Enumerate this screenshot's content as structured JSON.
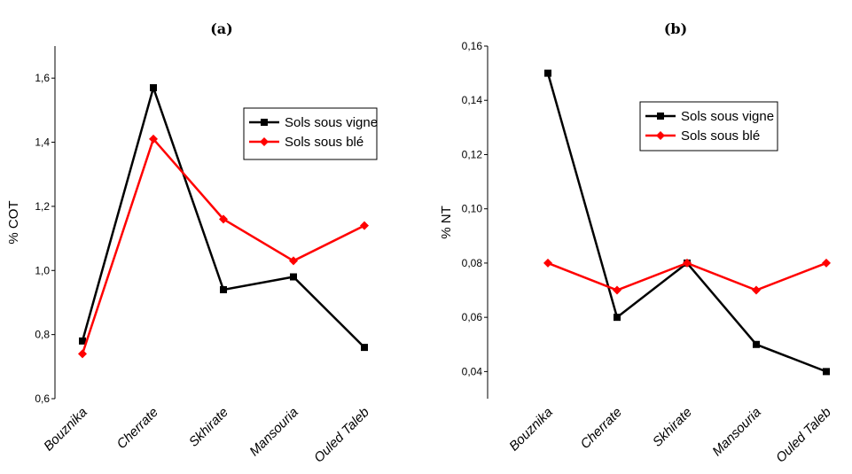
{
  "chart_data": [
    {
      "type": "line",
      "title": "(a)",
      "xlabel": "",
      "ylabel": "% COT",
      "categories": [
        "Bouznika",
        "Cherrate",
        "Skhirate",
        "Mansouria",
        "Ouled Taleb"
      ],
      "ylim": [
        0.6,
        1.7
      ],
      "yticks": [
        "0,6",
        "0,8",
        "1,0",
        "1,2",
        "1,4",
        "1,6"
      ],
      "ytick_values": [
        0.6,
        0.8,
        1.0,
        1.2,
        1.4,
        1.6
      ],
      "legend_position": "top-right",
      "series": [
        {
          "name": "Sols sous vigne",
          "color": "#000000",
          "marker": "square",
          "values": [
            0.78,
            1.57,
            0.94,
            0.98,
            0.76
          ]
        },
        {
          "name": "Sols sous blé",
          "color": "#ff0000",
          "marker": "diamond",
          "values": [
            0.74,
            1.41,
            1.16,
            1.03,
            1.14
          ]
        }
      ]
    },
    {
      "type": "line",
      "title": "(b)",
      "xlabel": "",
      "ylabel": "% NT",
      "categories": [
        "Bouznika",
        "Cherrate",
        "Skhirate",
        "Mansouria",
        "Ouled Taleb"
      ],
      "ylim": [
        0.03,
        0.16
      ],
      "yticks": [
        "0,04",
        "0,06",
        "0,08",
        "0,10",
        "0,12",
        "0,14",
        "0,16"
      ],
      "ytick_values": [
        0.04,
        0.06,
        0.08,
        0.1,
        0.12,
        0.14,
        0.16
      ],
      "legend_position": "top-right",
      "series": [
        {
          "name": "Sols sous vigne",
          "color": "#000000",
          "marker": "square",
          "values": [
            0.15,
            0.06,
            0.08,
            0.05,
            0.04
          ]
        },
        {
          "name": "Sols sous blé",
          "color": "#ff0000",
          "marker": "diamond",
          "values": [
            0.08,
            0.07,
            0.08,
            0.07,
            0.08
          ]
        }
      ]
    }
  ]
}
